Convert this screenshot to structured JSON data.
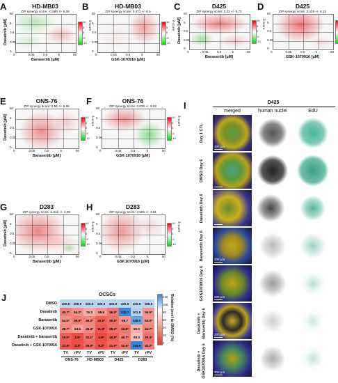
{
  "panels": {
    "A": {
      "label": "A",
      "title": "HD-MB03",
      "zip": "ZIP synergy score: -0.586 +/- 6.06",
      "ylabel": "Dasatinib [µM]",
      "xlabel": "Barasertib [µM]",
      "xticks": [
        "0",
        "0.05",
        "0.5",
        "5",
        "50"
      ],
      "yticks": [
        "0",
        "0.05",
        "0.5",
        "5",
        "50"
      ],
      "cbar_title": "δ-score",
      "cbar_ticks": [
        "10",
        "5",
        "0",
        "-5",
        "-10"
      ]
    },
    "B": {
      "label": "B",
      "title": "HD-MB03",
      "zip": "ZIP synergy score: 0.471 +/- 6.6",
      "ylabel": "",
      "xlabel": "GSK-1070916 [µM]",
      "xticks": [
        "0",
        "0.05",
        "0.5",
        "5",
        "50"
      ],
      "yticks": [
        "0",
        "0.05",
        "0.5",
        "5",
        "50"
      ],
      "cbar_title": "δ-score",
      "cbar_ticks": [
        "10",
        "5",
        "0",
        "-5",
        "-10"
      ]
    },
    "C": {
      "label": "C",
      "title": "D425",
      "zip": "ZIP synergy score: 2.22 +/- 5.72",
      "ylabel": "Dasatinib [µM]",
      "xlabel": "Barasertib [µM]",
      "xticks": [
        "0",
        "0.05",
        "0.5",
        "5",
        "50"
      ],
      "yticks": [
        "0",
        "0.05",
        "0.5",
        "5",
        "50"
      ],
      "cbar_title": "δ-score",
      "cbar_ticks": [
        "10",
        "5",
        "0",
        "-5",
        "-10"
      ]
    },
    "D": {
      "label": "D",
      "title": "D425",
      "zip": "ZIP synergy score: 3.429 +/- 6.24",
      "ylabel": "",
      "xlabel": "GSK-1070916 [µM]",
      "xticks": [
        "0",
        "0.05",
        "0.5",
        "5",
        "50"
      ],
      "yticks": [
        "0",
        "0.05",
        "0.5",
        "5",
        "50"
      ],
      "cbar_title": "δ-score",
      "cbar_ticks": [
        "10",
        "5",
        "0",
        "-5",
        "-10"
      ]
    },
    "E": {
      "label": "E",
      "title": "ONS-76",
      "zip": "ZIP synergy score: 2.96 +/- 6.65",
      "ylabel": "Dasatinib [µM]",
      "xlabel": "Barasertib [µM]",
      "xticks": [
        "0",
        "0.05",
        "0.5",
        "5",
        "50"
      ],
      "yticks": [
        "0",
        "0.05",
        "0.5",
        "5",
        "50"
      ],
      "cbar_title": "δ-score",
      "cbar_ticks": [
        "10",
        "5",
        "0",
        "-5",
        "-10"
      ]
    },
    "F": {
      "label": "F",
      "title": "ONS-76",
      "zip": "ZIP synergy score: 0.033 +/- 5.02",
      "ylabel": "",
      "xlabel": "GSK-1070916 [µM]",
      "xticks": [
        "0",
        "0.05",
        "0.5",
        "5",
        "50"
      ],
      "yticks": [
        "0",
        "0.05",
        "0.5",
        "5",
        "50"
      ],
      "cbar_title": "δ-score",
      "cbar_ticks": [
        "10",
        "5",
        "0",
        "-5",
        "-10"
      ]
    },
    "G": {
      "label": "G",
      "title": "D283",
      "zip": "ZIP synergy score: 5.216 +/- 4.08",
      "ylabel": "Dasatinib [µM]",
      "xlabel": "Barasertib [µM]",
      "xticks": [
        "0",
        "0.05",
        "0.5",
        "5",
        "50"
      ],
      "yticks": [
        "0",
        "0.05",
        "0.5",
        "5",
        "50"
      ],
      "cbar_title": "δ-score",
      "cbar_ticks": [
        "10",
        "5",
        "0",
        "-5",
        "-10"
      ]
    },
    "H": {
      "label": "H",
      "title": "D283",
      "zip": "ZIP synergy score: 2.965 +/- 3.91",
      "ylabel": "",
      "xlabel": "GSK1070916 [µM]",
      "xticks": [
        "0",
        "0.05",
        "0.5",
        "5",
        "50"
      ],
      "yticks": [
        "0",
        "0.05",
        "0.5",
        "5",
        "50"
      ],
      "cbar_title": "δ-score",
      "cbar_ticks": [
        "10",
        "5",
        "0",
        "-5",
        "-10"
      ]
    }
  },
  "panel_I": {
    "label": "I",
    "title": "D425",
    "columns": [
      "merged",
      "human nuclei",
      "EdU"
    ],
    "rows": [
      {
        "label": "Day 1 CTL",
        "scale": "100 µm"
      },
      {
        "label": "DMSO Day 6",
        "scale": ""
      },
      {
        "label": "Dasatinib Day 6",
        "scale": ""
      },
      {
        "label": "Barasertib Day 6",
        "scale": "200 µm"
      },
      {
        "label": "GSK1070916 Day 6",
        "scale": "200 µm"
      },
      {
        "label": "Dasatinib + Barasertib Day 6",
        "scale": "200 µm"
      },
      {
        "label": "Dasatinib + GSK1070916 Day 6",
        "scale": "300 µm"
      }
    ]
  },
  "chart_data": {
    "type": "heatmap",
    "label": "J",
    "title": "OCSCs",
    "rows": [
      "DMSO",
      "Dasatinib",
      "Barasertib",
      "GSK-1070916",
      "Dasatinib + barasertib",
      "Dasatinib + GSK-1070916"
    ],
    "columns": [
      "TV",
      "rPV",
      "TV",
      "rPV",
      "TV",
      "rPV",
      "TV",
      "rPV"
    ],
    "groups": [
      "ONS-76",
      "HD-MB03",
      "D425",
      "D283"
    ],
    "values": [
      [
        100.0,
        100.0,
        100.0,
        100.0,
        100.0,
        100.0,
        100.0,
        100.0
      ],
      [
        40.7,
        54.2,
        76.3,
        59.6,
        36.0,
        132.7,
        101.5,
        56.9
      ],
      [
        54.0,
        39.9,
        46.3,
        20.2,
        30.6,
        58.7,
        119.0,
        54.9
      ],
      [
        48.7,
        64.6,
        49.4,
        11.4,
        28.2,
        34.8,
        80.0,
        44.7
      ],
      [
        19.0,
        2.6,
        32.1,
        1.9,
        15.9,
        40.7,
        89.3,
        30.4
      ],
      [
        12.5,
        2.3,
        25.9,
        6.2,
        21.6,
        32.9,
        133.9,
        40.2
      ]
    ],
    "value_labels": [
      [
        "100.0",
        "100.0",
        "100.0",
        "100.0",
        "100.0",
        "100.0",
        "100.0",
        "100.0"
      ],
      [
        "40.7*",
        "54.2*",
        "76.3",
        "59.6",
        "36.0*",
        "132.7",
        "101.5",
        "56.9*"
      ],
      [
        "54.0*",
        "39.9*",
        "46.3*",
        "20.2*",
        "30.6*",
        "58.7",
        "119.0",
        "54.9*"
      ],
      [
        "48.7*",
        "64.6",
        "49.4*",
        "11.4*",
        "28.2*",
        "34.8*",
        "80.0",
        "44.7*"
      ],
      [
        "19.0*",
        "2.6*",
        "32.1*",
        "1.9*",
        "15.9*",
        "40.7*",
        "89.3",
        "30.4*"
      ],
      [
        "12.5*",
        "2.3*",
        "25.9*",
        "6.2*",
        "21.6*",
        "32.9*",
        "133.9",
        "40.2*"
      ]
    ],
    "colorbar": {
      "label": "Relative level to DMSO (%)",
      "ticks": [
        "120",
        "100",
        "80",
        "60",
        "40",
        "20",
        "0"
      ],
      "min": 0,
      "max": 130
    },
    "colors": {
      "low": "#e8352a",
      "mid": "#ffffff",
      "high": "#3a86d8"
    }
  }
}
